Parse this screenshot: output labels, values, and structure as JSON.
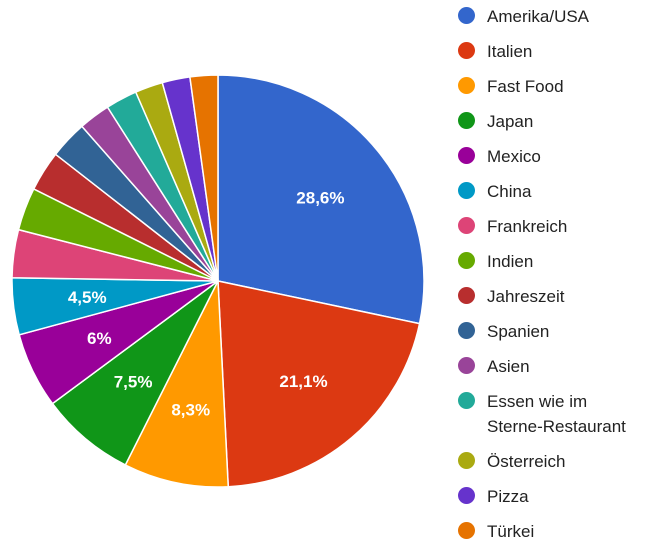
{
  "chart_data": {
    "type": "pie",
    "title": "",
    "start_angle_deg": 0,
    "direction": "clockwise",
    "legend_position": "right",
    "slices": [
      {
        "name": "Amerika/USA",
        "value": 28.6,
        "label": "28,6%",
        "color": "#3366cc"
      },
      {
        "name": "Italien",
        "value": 21.1,
        "label": "21,1%",
        "color": "#dc3912"
      },
      {
        "name": "Fast Food",
        "value": 8.3,
        "label": "8,3%",
        "color": "#ff9900"
      },
      {
        "name": "Japan",
        "value": 7.5,
        "label": "7,5%",
        "color": "#109618"
      },
      {
        "name": "Mexico",
        "value": 6.0,
        "label": "6%",
        "color": "#990099"
      },
      {
        "name": "China",
        "value": 4.5,
        "label": "4,5%",
        "color": "#0099c6"
      },
      {
        "name": "Frankreich",
        "value": 3.8,
        "label": "",
        "color": "#dd4477"
      },
      {
        "name": "Indien",
        "value": 3.4,
        "label": "",
        "color": "#66aa00"
      },
      {
        "name": "Jahreszeit",
        "value": 3.2,
        "label": "",
        "color": "#b82e2e"
      },
      {
        "name": "Spanien",
        "value": 3.0,
        "label": "",
        "color": "#316395"
      },
      {
        "name": "Asien",
        "value": 2.5,
        "label": "",
        "color": "#994499"
      },
      {
        "name": "Essen wie im\nSterne-Restaurant",
        "value": 2.5,
        "label": "",
        "color": "#22aa99"
      },
      {
        "name": "Österreich",
        "value": 2.2,
        "label": "",
        "color": "#aaaa11"
      },
      {
        "name": "Pizza",
        "value": 2.2,
        "label": "",
        "color": "#6633cc"
      },
      {
        "name": "Türkei",
        "value": 2.2,
        "label": "",
        "color": "#e67300"
      }
    ]
  }
}
